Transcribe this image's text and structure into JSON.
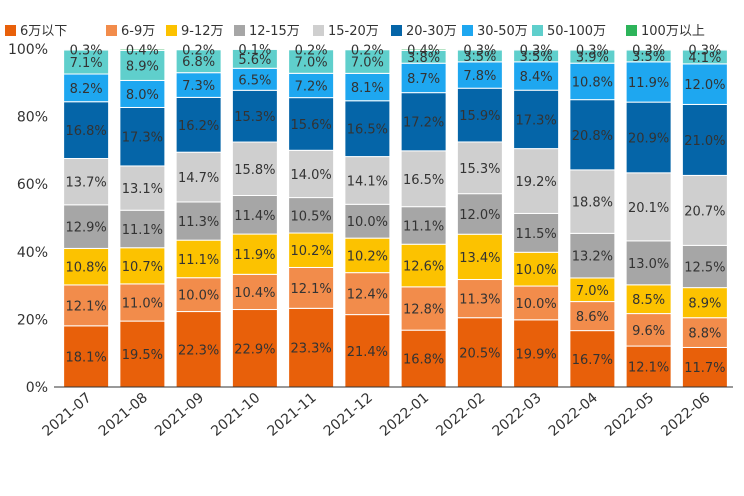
{
  "chart_data": {
    "type": "bar",
    "stacked": true,
    "normalized": true,
    "title": "",
    "xlabel": "",
    "ylabel": "",
    "ylim": [
      0,
      100
    ],
    "yticks": [
      "0%",
      "20%",
      "40%",
      "60%",
      "80%",
      "100%"
    ],
    "grid": false,
    "legend_position": "top",
    "categories": [
      "2021-07",
      "2021-08",
      "2021-09",
      "2021-10",
      "2021-11",
      "2021-12",
      "2022-01",
      "2022-02",
      "2022-03",
      "2022-04",
      "2022-05",
      "2022-06"
    ],
    "series": [
      {
        "name": "6万以下",
        "color": "#e8600a",
        "values": [
          18.1,
          19.5,
          22.3,
          22.9,
          23.3,
          21.4,
          16.8,
          20.5,
          19.9,
          16.7,
          12.1,
          11.7
        ]
      },
      {
        "name": "6-9万",
        "color": "#f28c4b",
        "values": [
          12.1,
          11.0,
          10.0,
          10.4,
          12.1,
          12.4,
          12.8,
          11.3,
          10.0,
          8.6,
          9.6,
          8.8
        ]
      },
      {
        "name": "9-12万",
        "color": "#fcc200",
        "values": [
          10.8,
          10.7,
          11.1,
          11.9,
          10.2,
          10.2,
          12.6,
          13.4,
          10.0,
          7.0,
          8.5,
          8.9
        ]
      },
      {
        "name": "12-15万",
        "color": "#a6a6a6",
        "values": [
          12.9,
          11.1,
          11.3,
          11.4,
          10.5,
          10.0,
          11.1,
          12.0,
          11.5,
          13.2,
          13.0,
          12.5
        ]
      },
      {
        "name": "15-20万",
        "color": "#cfcfcf",
        "values": [
          13.7,
          13.1,
          14.7,
          15.8,
          14.0,
          14.1,
          16.5,
          15.3,
          19.2,
          18.8,
          20.1,
          20.7
        ]
      },
      {
        "name": "20-30万",
        "color": "#0565a8",
        "values": [
          16.8,
          17.3,
          16.2,
          15.3,
          15.6,
          16.5,
          17.2,
          15.9,
          17.3,
          20.8,
          20.9,
          21.0
        ]
      },
      {
        "name": "30-50万",
        "color": "#1ea7f0",
        "values": [
          8.2,
          8.0,
          7.3,
          6.5,
          7.2,
          8.1,
          8.7,
          7.8,
          8.4,
          10.8,
          11.9,
          12.0
        ]
      },
      {
        "name": "50-100万",
        "color": "#5fcfcc",
        "values": [
          7.1,
          8.9,
          6.8,
          5.6,
          7.0,
          7.0,
          3.8,
          3.5,
          3.5,
          3.9,
          3.5,
          4.1
        ]
      },
      {
        "name": "100万以上",
        "color": "#2db45a",
        "values": [
          0.3,
          0.4,
          0.2,
          0.1,
          0.2,
          0.2,
          0.4,
          0.3,
          0.3,
          0.3,
          0.3,
          0.3
        ]
      }
    ]
  }
}
